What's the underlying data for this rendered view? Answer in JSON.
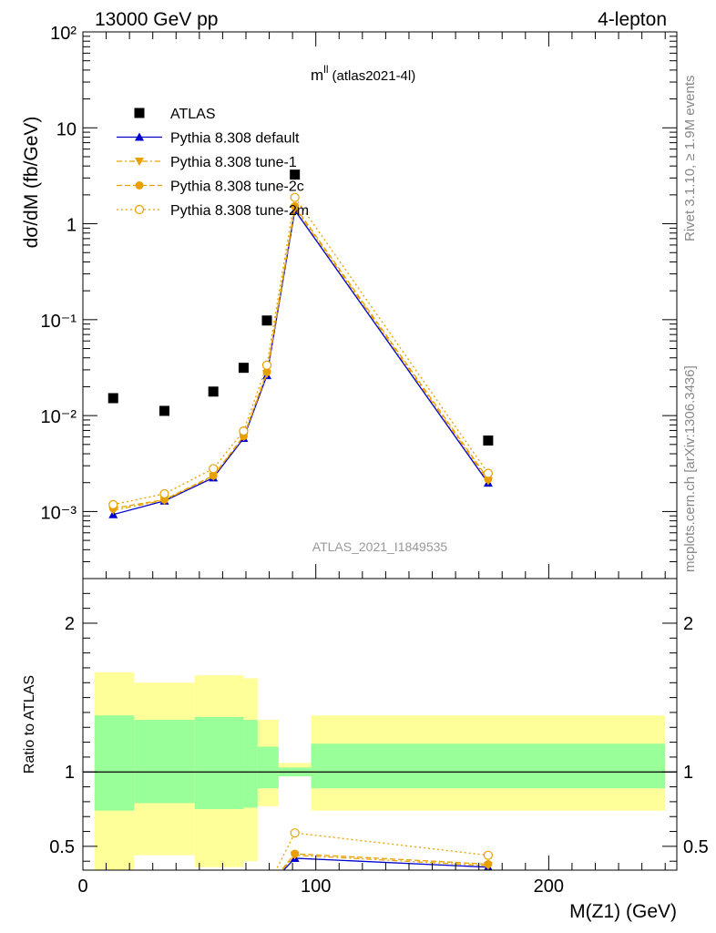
{
  "header": {
    "left": "13000 GeV pp",
    "right": "4-lepton"
  },
  "side_labels": {
    "top": "Rivet 3.1.10, ≥ 1.9M events",
    "bottom": "mcplots.cern.ch [arXiv:1306.3436]"
  },
  "chart_data": [
    {
      "type": "line",
      "panel": "main",
      "title": "m",
      "title_sup": "ll",
      "title_sub": "(atlas2021-4l)",
      "watermark": "ATLAS_2021_I1849535",
      "ylabel": "dσ/dM (fb/GeV)",
      "xlabel": "M(Z1) (GeV)",
      "yscale": "log",
      "ylim": [
        0.0002,
        100
      ],
      "xlim": [
        0,
        255
      ],
      "x_ticks": [
        "0",
        "100",
        "200"
      ],
      "y_ticks": [
        "10⁻³",
        "10⁻²",
        "10⁻¹",
        "1",
        "10",
        "10²"
      ],
      "legend": [
        "ATLAS",
        "Pythia 8.308 default",
        "Pythia 8.308 tune-1",
        "Pythia 8.308 tune-2c",
        "Pythia 8.308 tune-2m"
      ],
      "x": [
        13,
        35,
        56,
        69,
        79,
        91,
        174
      ],
      "series": [
        {
          "name": "ATLAS",
          "style": "data",
          "color": "#000000",
          "values": [
            0.0152,
            0.0112,
            0.0178,
            0.0315,
            0.098,
            3.25,
            0.0055
          ]
        },
        {
          "name": "Pythia 8.308 default",
          "style": "triangle",
          "color": "#0000cc",
          "values": [
            0.00093,
            0.00129,
            0.00225,
            0.0058,
            0.0262,
            1.38,
            0.00198
          ]
        },
        {
          "name": "Pythia 8.308 tune-1",
          "style": "triangle-down",
          "color": "#e8a000",
          "values": [
            0.00103,
            0.00131,
            0.00233,
            0.006,
            0.0272,
            1.45,
            0.00208
          ]
        },
        {
          "name": "Pythia 8.308 tune-2c",
          "style": "circle-filled",
          "color": "#e8a000",
          "values": [
            0.00108,
            0.00133,
            0.00237,
            0.0061,
            0.0285,
            1.52,
            0.00218
          ]
        },
        {
          "name": "Pythia 8.308 tune-2m",
          "style": "circle-open",
          "color": "#e8a000",
          "values": [
            0.00118,
            0.00153,
            0.0028,
            0.0069,
            0.0335,
            1.88,
            0.0025
          ]
        }
      ]
    },
    {
      "type": "line",
      "panel": "ratio",
      "ylabel": "Ratio to ATLAS",
      "ylim": [
        0.34,
        2.3
      ],
      "y_ticks": [
        "0.5",
        "1",
        "2"
      ],
      "bins": [
        [
          5,
          22
        ],
        [
          22,
          48
        ],
        [
          48,
          69
        ],
        [
          69,
          75
        ],
        [
          75,
          84
        ],
        [
          84,
          98
        ],
        [
          98,
          250
        ]
      ],
      "stat_band": [
        [
          0.74,
          1.38
        ],
        [
          0.79,
          1.35
        ],
        [
          0.75,
          1.37
        ],
        [
          0.76,
          1.35
        ],
        [
          0.89,
          1.17
        ],
        [
          0.97,
          1.03
        ],
        [
          0.89,
          1.19
        ]
      ],
      "total_band": [
        [
          0.2,
          1.67
        ],
        [
          0.44,
          1.6
        ],
        [
          0.36,
          1.65
        ],
        [
          0.4,
          1.63
        ],
        [
          0.77,
          1.35
        ],
        [
          0.97,
          1.06
        ],
        [
          0.74,
          1.38
        ]
      ],
      "x": [
        91,
        174
      ],
      "series": [
        {
          "name": "Pythia 8.308 default",
          "color": "#0000cc",
          "values": [
            0.42,
            0.36
          ]
        },
        {
          "name": "Pythia 8.308 tune-1",
          "color": "#e8a000",
          "values": [
            0.44,
            0.37
          ]
        },
        {
          "name": "Pythia 8.308 tune-2c",
          "color": "#e8a000",
          "values": [
            0.45,
            0.38
          ]
        },
        {
          "name": "Pythia 8.308 tune-2m",
          "color": "#e8a000",
          "values": [
            0.59,
            0.44
          ]
        }
      ]
    }
  ]
}
